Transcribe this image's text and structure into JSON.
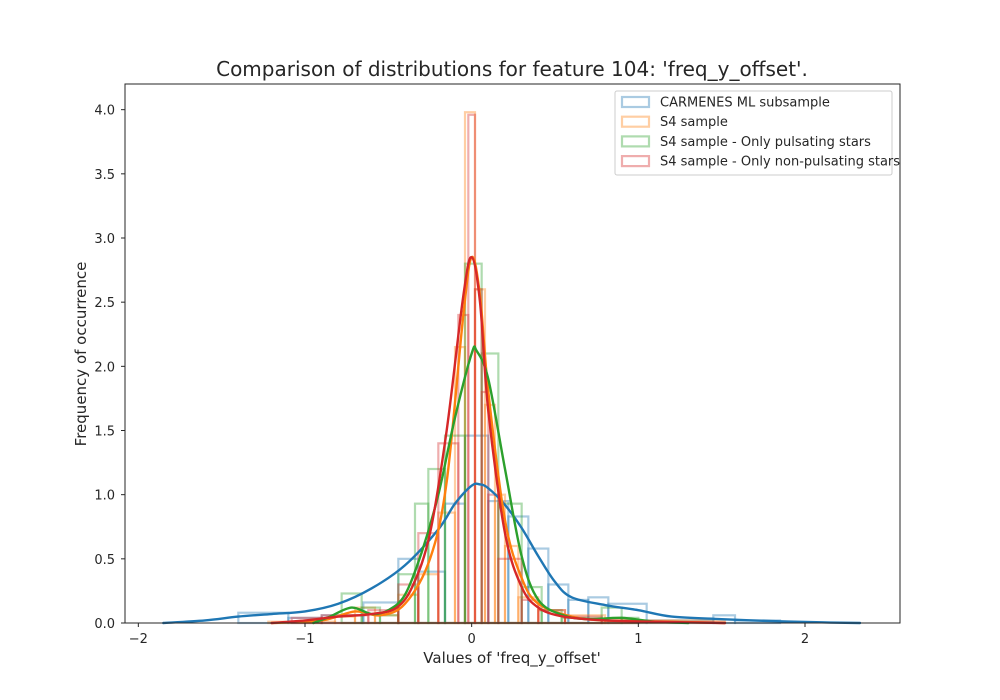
{
  "chart_data": {
    "type": "histogram+kde",
    "title": "Comparison of distributions for feature 104: 'freq_y_offset'.",
    "xlabel": "Values of 'freq_y_offset'",
    "ylabel": "Frequency of occurrence",
    "xlim": [
      -2.08,
      2.57
    ],
    "ylim": [
      0,
      4.2
    ],
    "xticks": [
      -2,
      -1,
      0,
      1,
      2
    ],
    "xtick_labels": [
      "−2",
      "−1",
      "0",
      "1",
      "2"
    ],
    "yticks": [
      0.0,
      0.5,
      1.0,
      1.5,
      2.0,
      2.5,
      3.0,
      3.5,
      4.0
    ],
    "ytick_labels": [
      "0.0",
      "0.5",
      "1.0",
      "1.5",
      "2.0",
      "2.5",
      "3.0",
      "3.5",
      "4.0"
    ],
    "grid": false,
    "legend_position": "top-right",
    "series": [
      {
        "name": "CARMENES ML subsample",
        "color": "#1f77b4",
        "hist_bins": [
          [
            -1.4,
            -1.1,
            0.08
          ],
          [
            -1.1,
            -0.9,
            0.04
          ],
          [
            -0.9,
            -0.65,
            0.06
          ],
          [
            -0.65,
            -0.44,
            0.16
          ],
          [
            -0.44,
            -0.32,
            0.5
          ],
          [
            -0.32,
            -0.16,
            0.4
          ],
          [
            -0.16,
            -0.04,
            0.93
          ],
          [
            -0.04,
            0.1,
            1.46
          ],
          [
            0.1,
            0.22,
            0.95
          ],
          [
            0.22,
            0.34,
            0.83
          ],
          [
            0.34,
            0.46,
            0.58
          ],
          [
            0.46,
            0.58,
            0.3
          ],
          [
            0.58,
            0.7,
            0.18
          ],
          [
            0.7,
            0.82,
            0.2
          ],
          [
            0.82,
            1.05,
            0.15
          ],
          [
            1.05,
            1.45,
            0.02
          ],
          [
            1.45,
            1.58,
            0.06
          ],
          [
            1.58,
            1.85,
            0.02
          ]
        ],
        "kde": [
          [
            -1.85,
            0.0
          ],
          [
            -1.6,
            0.02
          ],
          [
            -1.4,
            0.05
          ],
          [
            -1.2,
            0.07
          ],
          [
            -1.0,
            0.09
          ],
          [
            -0.8,
            0.15
          ],
          [
            -0.6,
            0.27
          ],
          [
            -0.4,
            0.45
          ],
          [
            -0.2,
            0.73
          ],
          [
            -0.1,
            0.93
          ],
          [
            0.0,
            1.07
          ],
          [
            0.05,
            1.08
          ],
          [
            0.1,
            1.05
          ],
          [
            0.2,
            0.92
          ],
          [
            0.3,
            0.74
          ],
          [
            0.4,
            0.52
          ],
          [
            0.5,
            0.32
          ],
          [
            0.6,
            0.2
          ],
          [
            0.8,
            0.14
          ],
          [
            1.0,
            0.1
          ],
          [
            1.2,
            0.05
          ],
          [
            1.5,
            0.03
          ],
          [
            1.8,
            0.015
          ],
          [
            2.1,
            0.005
          ],
          [
            2.33,
            0.0
          ]
        ]
      },
      {
        "name": "S4 sample",
        "color": "#ff7f0e",
        "hist_bins": [
          [
            -1.22,
            -0.82,
            0.01
          ],
          [
            -0.82,
            -0.7,
            0.05
          ],
          [
            -0.7,
            -0.58,
            0.12
          ],
          [
            -0.58,
            -0.44,
            0.06
          ],
          [
            -0.44,
            -0.32,
            0.22
          ],
          [
            -0.32,
            -0.2,
            0.38
          ],
          [
            -0.2,
            -0.1,
            0.86
          ],
          [
            -0.1,
            -0.04,
            2.15
          ],
          [
            -0.04,
            0.02,
            3.98
          ],
          [
            0.02,
            0.08,
            2.6
          ],
          [
            0.08,
            0.14,
            1.7
          ],
          [
            0.14,
            0.2,
            1.0
          ],
          [
            0.2,
            0.28,
            0.6
          ],
          [
            0.28,
            0.4,
            0.2
          ],
          [
            0.4,
            0.56,
            0.1
          ],
          [
            0.56,
            0.8,
            0.06
          ],
          [
            0.8,
            1.52,
            0.02
          ]
        ],
        "kde": [
          [
            -1.2,
            0.0
          ],
          [
            -0.9,
            0.02
          ],
          [
            -0.7,
            0.09
          ],
          [
            -0.55,
            0.06
          ],
          [
            -0.4,
            0.15
          ],
          [
            -0.25,
            0.5
          ],
          [
            -0.15,
            1.1
          ],
          [
            -0.05,
            2.4
          ],
          [
            0.0,
            2.85
          ],
          [
            0.05,
            2.55
          ],
          [
            0.1,
            1.8
          ],
          [
            0.2,
            0.8
          ],
          [
            0.3,
            0.35
          ],
          [
            0.4,
            0.15
          ],
          [
            0.6,
            0.05
          ],
          [
            0.8,
            0.02
          ],
          [
            1.2,
            0.01
          ],
          [
            1.52,
            0.0
          ]
        ]
      },
      {
        "name": "S4 sample - Only pulsating stars",
        "color": "#2ca02c",
        "hist_bins": [
          [
            -0.78,
            -0.66,
            0.23
          ],
          [
            -0.66,
            -0.55,
            0.12
          ],
          [
            -0.55,
            -0.44,
            0.06
          ],
          [
            -0.44,
            -0.34,
            0.38
          ],
          [
            -0.34,
            -0.26,
            0.93
          ],
          [
            -0.26,
            -0.16,
            1.2
          ],
          [
            -0.16,
            -0.04,
            1.46
          ],
          [
            -0.04,
            0.06,
            2.8
          ],
          [
            0.06,
            0.16,
            2.1
          ],
          [
            0.16,
            0.3,
            0.93
          ],
          [
            0.3,
            0.42,
            0.28
          ],
          [
            0.42,
            0.54,
            0.1
          ],
          [
            0.54,
            0.78,
            0.04
          ],
          [
            0.78,
            0.9,
            0.12
          ],
          [
            0.9,
            1.0,
            0.04
          ]
        ],
        "kde": [
          [
            -0.95,
            0.0
          ],
          [
            -0.85,
            0.05
          ],
          [
            -0.72,
            0.12
          ],
          [
            -0.6,
            0.07
          ],
          [
            -0.5,
            0.1
          ],
          [
            -0.4,
            0.22
          ],
          [
            -0.3,
            0.55
          ],
          [
            -0.2,
            1.0
          ],
          [
            -0.1,
            1.6
          ],
          [
            0.0,
            2.1
          ],
          [
            0.03,
            2.12
          ],
          [
            0.1,
            1.9
          ],
          [
            0.2,
            1.2
          ],
          [
            0.3,
            0.52
          ],
          [
            0.4,
            0.18
          ],
          [
            0.55,
            0.06
          ],
          [
            0.7,
            0.03
          ],
          [
            0.9,
            0.04
          ],
          [
            1.1,
            0.01
          ],
          [
            1.3,
            0.0
          ]
        ]
      },
      {
        "name": "S4 sample - Only non-pulsating stars",
        "color": "#d62728",
        "hist_bins": [
          [
            -1.08,
            -0.9,
            0.04
          ],
          [
            -0.9,
            -0.62,
            0.06
          ],
          [
            -0.62,
            -0.44,
            0.1
          ],
          [
            -0.44,
            -0.32,
            0.3
          ],
          [
            -0.32,
            -0.2,
            0.7
          ],
          [
            -0.2,
            -0.08,
            1.4
          ],
          [
            -0.08,
            -0.02,
            2.4
          ],
          [
            -0.02,
            0.02,
            3.96
          ],
          [
            0.02,
            0.06,
            2.6
          ],
          [
            0.06,
            0.1,
            1.8
          ],
          [
            0.1,
            0.16,
            1.0
          ],
          [
            0.16,
            0.3,
            0.5
          ],
          [
            0.3,
            0.4,
            0.18
          ],
          [
            0.4,
            0.56,
            0.1
          ],
          [
            0.56,
            0.78,
            0.05
          ],
          [
            0.78,
            1.0,
            0.02
          ]
        ],
        "kde": [
          [
            -1.2,
            0.0
          ],
          [
            -1.0,
            0.02
          ],
          [
            -0.8,
            0.05
          ],
          [
            -0.6,
            0.07
          ],
          [
            -0.45,
            0.12
          ],
          [
            -0.35,
            0.3
          ],
          [
            -0.25,
            0.7
          ],
          [
            -0.15,
            1.5
          ],
          [
            -0.05,
            2.55
          ],
          [
            0.0,
            2.85
          ],
          [
            0.05,
            2.5
          ],
          [
            0.1,
            1.65
          ],
          [
            0.2,
            0.7
          ],
          [
            0.3,
            0.28
          ],
          [
            0.4,
            0.12
          ],
          [
            0.55,
            0.05
          ],
          [
            0.8,
            0.02
          ],
          [
            1.1,
            0.01
          ],
          [
            1.52,
            0.0
          ]
        ]
      }
    ]
  }
}
